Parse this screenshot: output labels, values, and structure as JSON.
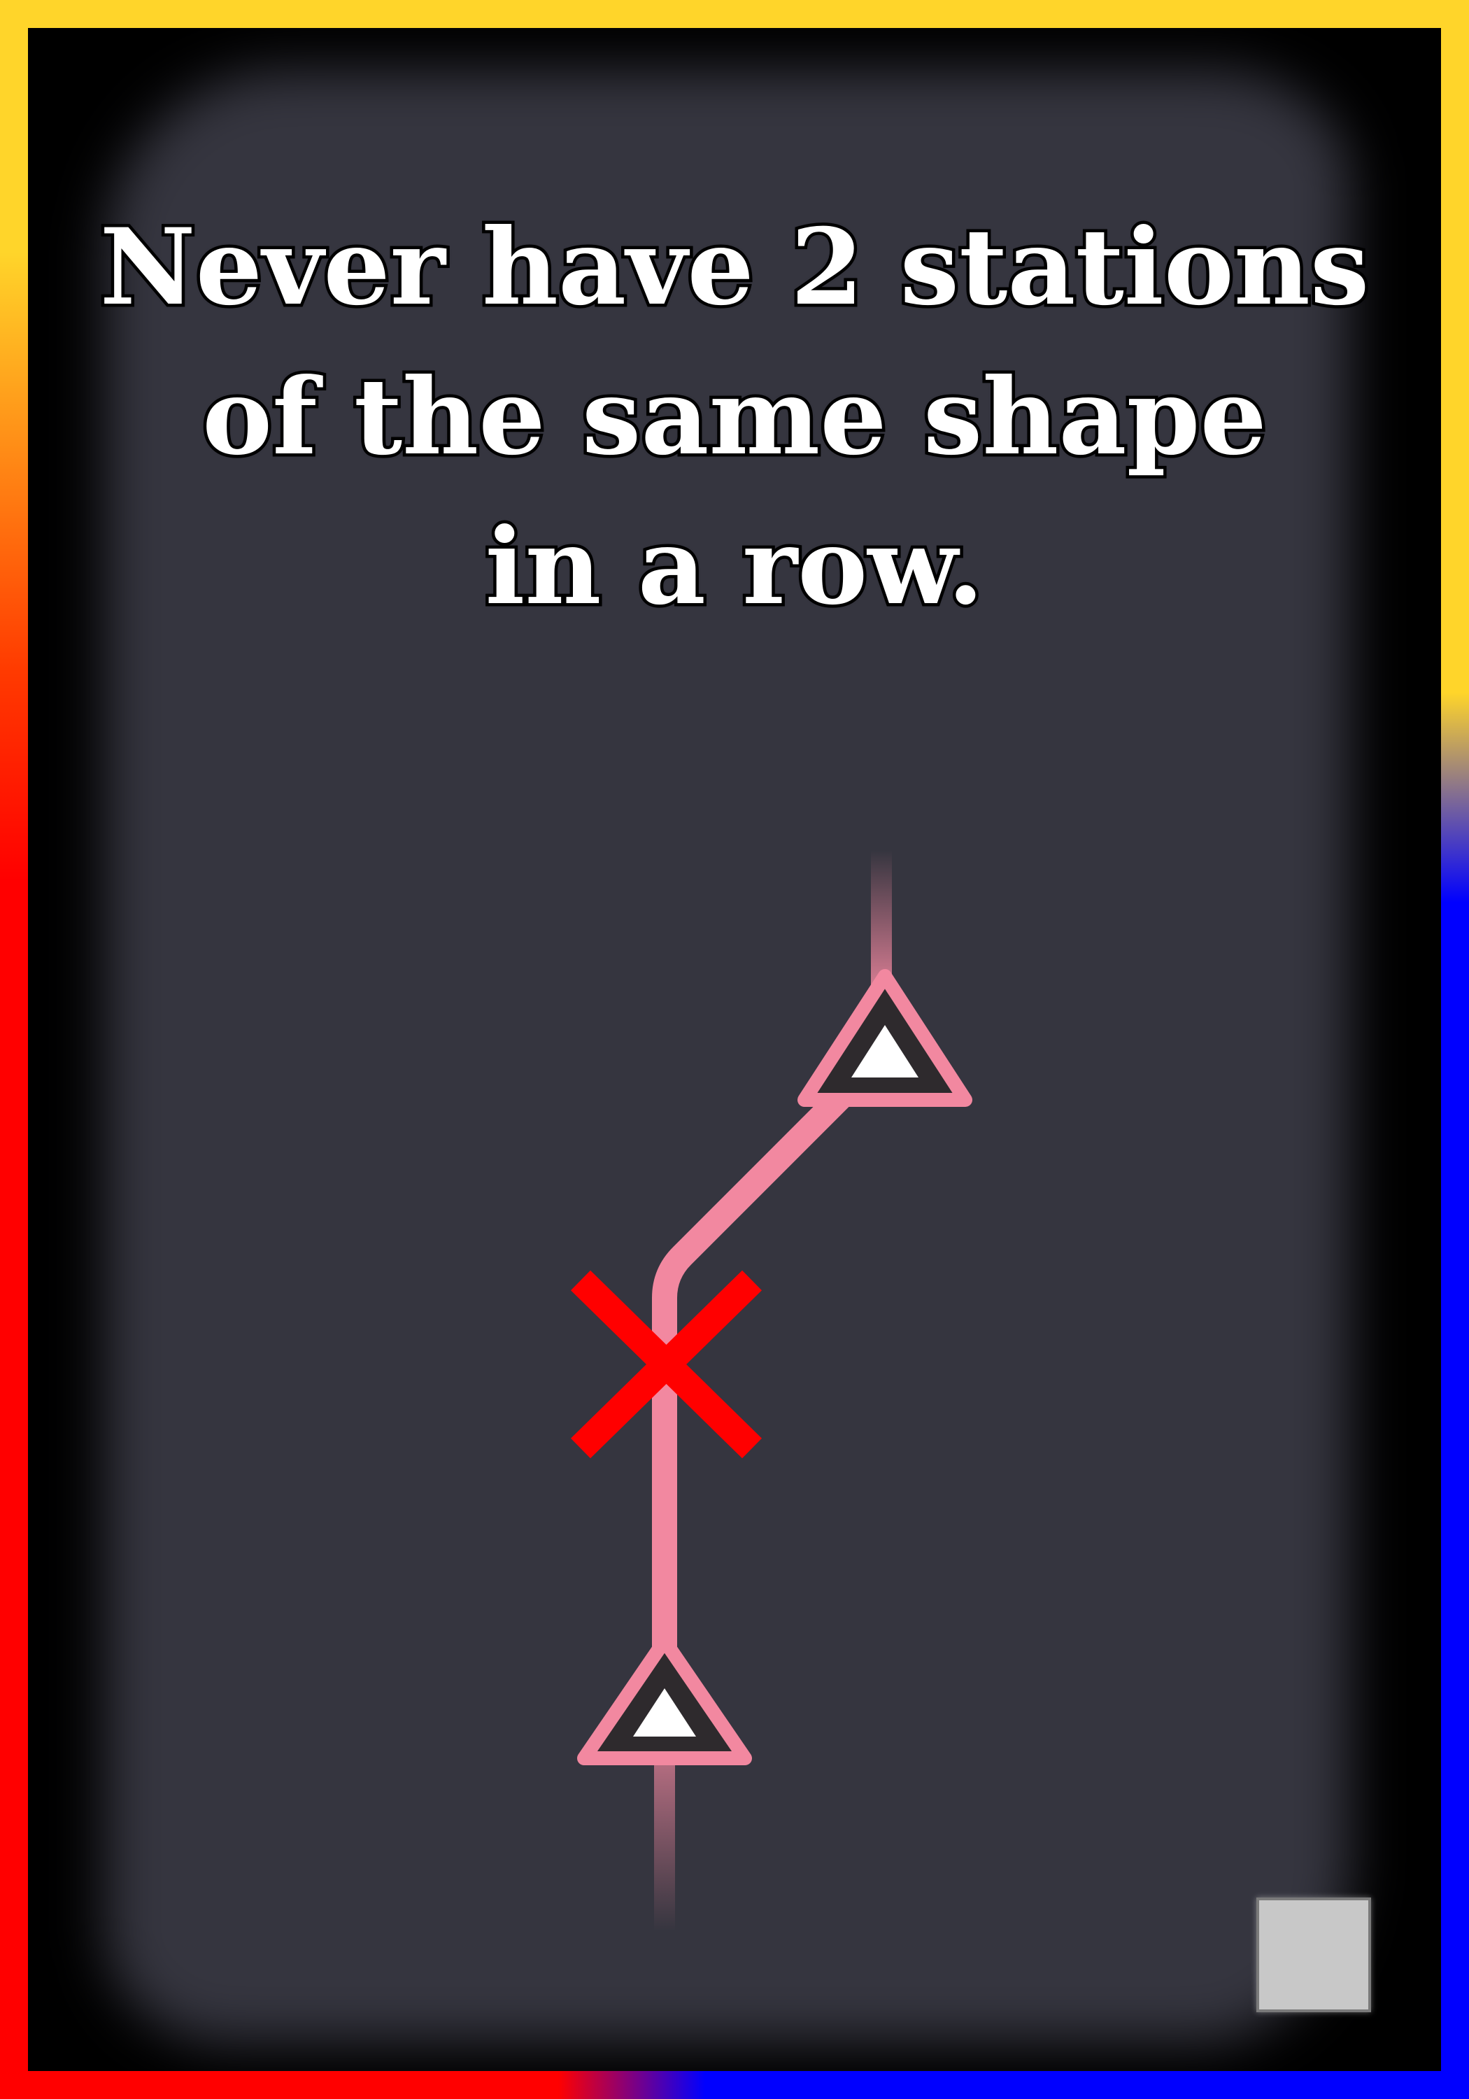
{
  "rule": {
    "lines": [
      "Never have 2 stations",
      "of the same shape",
      "in a row."
    ]
  },
  "colors": {
    "border_top": "#ffd52a",
    "border_left": "#ff0000",
    "border_right": "#0000ff",
    "panel": "#35353f",
    "metro_line": "#f288a0",
    "forbidden_mark": "#ff0000",
    "station_outline": "#2e2a2d",
    "station_fill": "#ffffff",
    "token": "#c8c8c8"
  },
  "icons": {
    "upper_station": "triangle-station-icon",
    "lower_station": "triangle-station-icon",
    "forbidden": "red-x-icon",
    "corner": "square-token-icon"
  }
}
